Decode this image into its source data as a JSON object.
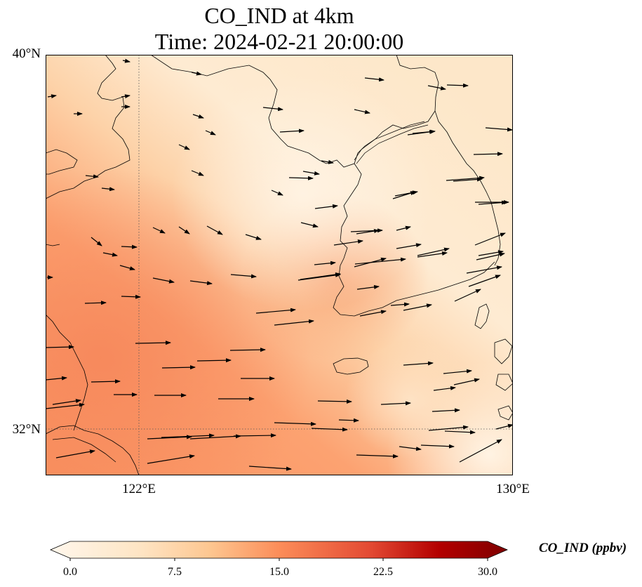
{
  "title": {
    "line1": "CO_IND at 4km",
    "line2": "Time: 2024-02-21 20:00:00"
  },
  "axes": {
    "lon_range": [
      120,
      130
    ],
    "lat_range": [
      31,
      40
    ],
    "x_ticks": [
      "122°E",
      "130°E"
    ],
    "y_ticks": [
      "40°N",
      "32°N"
    ],
    "gridline_style": "dotted"
  },
  "colorbar": {
    "label": "CO_IND (ppbv)",
    "colormap": "OrRd",
    "extend": "both",
    "ticks": [
      "0.0",
      "7.5",
      "15.0",
      "22.5",
      "30.0"
    ],
    "range": [
      0,
      30
    ]
  },
  "colors": {
    "low": "#fff7ec",
    "mid": "#fdbb84",
    "high": "#e34a33",
    "max": "#7f0000",
    "coastline": "#000000",
    "wind_arrow": "#000000"
  },
  "map_layers": [
    "coastlines",
    "wind-vectors",
    "CO_IND concentration field"
  ]
}
